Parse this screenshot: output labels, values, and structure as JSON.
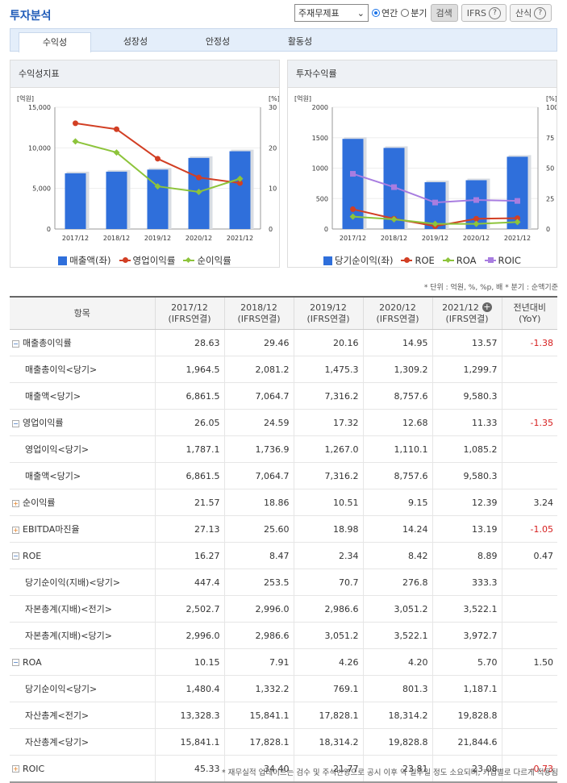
{
  "header": {
    "title": "투자분석",
    "select_value": "주재무제표",
    "radio_annual": "연간",
    "radio_quarter": "분기",
    "search_label": "검색",
    "ifrs_label": "IFRS",
    "formula_label": "산식"
  },
  "tabs": [
    "수익성",
    "성장성",
    "안정성",
    "활동성"
  ],
  "charts": [
    {
      "panel_title": "수익성지표",
      "left_unit": "[억원]",
      "right_unit": "[%]",
      "colors": {
        "bar": "#2f6fdb",
        "line1": "#d23f24",
        "line2": "#8dc43b"
      },
      "chart_data": {
        "type": "bar",
        "categories": [
          "2017/12",
          "2018/12",
          "2019/12",
          "2020/12",
          "2021/12"
        ],
        "ylim": [
          0,
          15000
        ],
        "yticks": [
          "15,000",
          "10,000",
          "5,000",
          "0"
        ],
        "y2lim": [
          0,
          30
        ],
        "y2ticks": [
          "30",
          "20",
          "10",
          "0"
        ],
        "series": [
          {
            "name": "매출액(좌)",
            "type": "bar",
            "values": [
              6861.5,
              7064.7,
              7316.2,
              8757.6,
              9580.3
            ]
          },
          {
            "name": "영업이익률",
            "type": "line",
            "axis": "right",
            "values": [
              26.05,
              24.59,
              17.32,
              12.68,
              11.33
            ]
          },
          {
            "name": "순이익률",
            "type": "line",
            "axis": "right",
            "values": [
              21.57,
              18.86,
              10.51,
              9.15,
              12.39
            ]
          }
        ]
      }
    },
    {
      "panel_title": "투자수익률",
      "left_unit": "[억원]",
      "right_unit": "[%]",
      "colors": {
        "bar": "#2f6fdb",
        "line1": "#d23f24",
        "line2": "#8dc43b",
        "line3": "#a87de0"
      },
      "chart_data": {
        "type": "bar",
        "categories": [
          "2017/12",
          "2018/12",
          "2019/12",
          "2020/12",
          "2021/12"
        ],
        "ylim": [
          0,
          2000
        ],
        "yticks": [
          "2000",
          "1500",
          "1000",
          "500",
          "0"
        ],
        "y2lim": [
          0,
          100
        ],
        "y2ticks": [
          "100",
          "75",
          "50",
          "25",
          "0"
        ],
        "series": [
          {
            "name": "당기순이익(좌)",
            "type": "bar",
            "values": [
              1480.4,
              1332.2,
              769.1,
              801.3,
              1187.1
            ]
          },
          {
            "name": "ROE",
            "type": "line",
            "axis": "right",
            "values": [
              16.27,
              8.47,
              2.34,
              8.42,
              8.89
            ]
          },
          {
            "name": "ROA",
            "type": "line",
            "axis": "right",
            "values": [
              10.15,
              7.91,
              4.26,
              4.2,
              5.7
            ]
          },
          {
            "name": "ROIC",
            "type": "line",
            "axis": "right",
            "values": [
              45.33,
              34.4,
              21.77,
              23.81,
              23.08
            ]
          }
        ]
      }
    }
  ],
  "unit_note": "* 단위 : 억원, %, %p, 배   * 분기 : 순액기준",
  "table": {
    "headers": [
      "항목",
      "2017/12\n(IFRS연결)",
      "2018/12\n(IFRS연결)",
      "2019/12\n(IFRS연결)",
      "2020/12\n(IFRS연결)",
      "2021/12\n(IFRS연결)",
      "전년대비\n(YoY)"
    ],
    "rows": [
      {
        "label": "매출총이익률",
        "toggle": "minus",
        "values": [
          "28.63",
          "29.46",
          "20.16",
          "14.95",
          "13.57"
        ],
        "yoy": "-1.38"
      },
      {
        "label": "매출총이익<당기>",
        "sub": true,
        "values": [
          "1,964.5",
          "2,081.2",
          "1,475.3",
          "1,309.2",
          "1,299.7"
        ],
        "yoy": ""
      },
      {
        "label": "매출액<당기>",
        "sub": true,
        "values": [
          "6,861.5",
          "7,064.7",
          "7,316.2",
          "8,757.6",
          "9,580.3"
        ],
        "yoy": ""
      },
      {
        "label": "영업이익률",
        "toggle": "minus",
        "values": [
          "26.05",
          "24.59",
          "17.32",
          "12.68",
          "11.33"
        ],
        "yoy": "-1.35"
      },
      {
        "label": "영업이익<당기>",
        "sub": true,
        "values": [
          "1,787.1",
          "1,736.9",
          "1,267.0",
          "1,110.1",
          "1,085.2"
        ],
        "yoy": ""
      },
      {
        "label": "매출액<당기>",
        "sub": true,
        "values": [
          "6,861.5",
          "7,064.7",
          "7,316.2",
          "8,757.6",
          "9,580.3"
        ],
        "yoy": ""
      },
      {
        "label": "순이익률",
        "toggle": "plus",
        "values": [
          "21.57",
          "18.86",
          "10.51",
          "9.15",
          "12.39"
        ],
        "yoy": "3.24"
      },
      {
        "label": "EBITDA마진율",
        "toggle": "plus",
        "values": [
          "27.13",
          "25.60",
          "18.98",
          "14.24",
          "13.19"
        ],
        "yoy": "-1.05"
      },
      {
        "label": "ROE",
        "toggle": "minus",
        "values": [
          "16.27",
          "8.47",
          "2.34",
          "8.42",
          "8.89"
        ],
        "yoy": "0.47"
      },
      {
        "label": "당기순이익(지배)<당기>",
        "sub": true,
        "values": [
          "447.4",
          "253.5",
          "70.7",
          "276.8",
          "333.3"
        ],
        "yoy": ""
      },
      {
        "label": "자본총계(지배)<전기>",
        "sub": true,
        "values": [
          "2,502.7",
          "2,996.0",
          "2,986.6",
          "3,051.2",
          "3,522.1"
        ],
        "yoy": ""
      },
      {
        "label": "자본총계(지배)<당기>",
        "sub": true,
        "values": [
          "2,996.0",
          "2,986.6",
          "3,051.2",
          "3,522.1",
          "3,972.7"
        ],
        "yoy": ""
      },
      {
        "label": "ROA",
        "toggle": "minus",
        "values": [
          "10.15",
          "7.91",
          "4.26",
          "4.20",
          "5.70"
        ],
        "yoy": "1.50"
      },
      {
        "label": "당기순이익<당기>",
        "sub": true,
        "values": [
          "1,480.4",
          "1,332.2",
          "769.1",
          "801.3",
          "1,187.1"
        ],
        "yoy": ""
      },
      {
        "label": "자산총계<전기>",
        "sub": true,
        "values": [
          "13,328.3",
          "15,841.1",
          "17,828.1",
          "18,314.2",
          "19,828.8"
        ],
        "yoy": ""
      },
      {
        "label": "자산총계<당기>",
        "sub": true,
        "values": [
          "15,841.1",
          "17,828.1",
          "18,314.2",
          "19,828.8",
          "21,844.6"
        ],
        "yoy": ""
      },
      {
        "label": "ROIC",
        "toggle": "plus",
        "values": [
          "45.33",
          "34.40",
          "21.77",
          "23.81",
          "23.08"
        ],
        "yoy": "-0.73"
      }
    ]
  },
  "footnote": "* 재무실적 업데이트는 검수 및 주석반영으로 공시 이후 약 일주일 정도 소요되며, 기업별로 다르게 적용됨"
}
